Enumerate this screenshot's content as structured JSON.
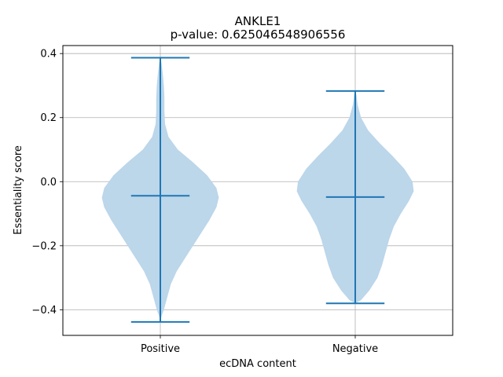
{
  "chart_data": {
    "type": "violin",
    "title": "ANKLE1",
    "subtitle": "p-value: 0.625046548906556",
    "xlabel": "ecDNA content",
    "ylabel": "Essentiality score",
    "categories": [
      "Positive",
      "Negative"
    ],
    "ylim": [
      -0.48,
      0.425
    ],
    "yticks": [
      -0.4,
      -0.2,
      0.0,
      0.2,
      0.4
    ],
    "ytick_labels": [
      "−0.4",
      "−0.2",
      "0.0",
      "0.2",
      "0.4"
    ],
    "grid": true,
    "color": "#1f77b4",
    "body_color": "#bcd6ea",
    "series": [
      {
        "category": "Positive",
        "min": -0.438,
        "median": -0.044,
        "max": 0.387,
        "density": [
          [
            -0.438,
            0.0
          ],
          [
            -0.42,
            0.02
          ],
          [
            -0.4,
            0.06
          ],
          [
            -0.36,
            0.12
          ],
          [
            -0.32,
            0.18
          ],
          [
            -0.28,
            0.28
          ],
          [
            -0.24,
            0.42
          ],
          [
            -0.2,
            0.56
          ],
          [
            -0.16,
            0.7
          ],
          [
            -0.12,
            0.84
          ],
          [
            -0.08,
            0.96
          ],
          [
            -0.05,
            1.0
          ],
          [
            -0.02,
            0.96
          ],
          [
            0.02,
            0.8
          ],
          [
            0.06,
            0.56
          ],
          [
            0.1,
            0.3
          ],
          [
            0.14,
            0.14
          ],
          [
            0.18,
            0.08
          ],
          [
            0.22,
            0.07
          ],
          [
            0.26,
            0.07
          ],
          [
            0.3,
            0.06
          ],
          [
            0.34,
            0.04
          ],
          [
            0.37,
            0.02
          ],
          [
            0.387,
            0.0
          ]
        ]
      },
      {
        "category": "Negative",
        "min": -0.38,
        "median": -0.048,
        "max": 0.283,
        "density": [
          [
            -0.38,
            0.0
          ],
          [
            -0.37,
            0.1
          ],
          [
            -0.34,
            0.24
          ],
          [
            -0.3,
            0.38
          ],
          [
            -0.26,
            0.46
          ],
          [
            -0.22,
            0.52
          ],
          [
            -0.18,
            0.58
          ],
          [
            -0.14,
            0.66
          ],
          [
            -0.1,
            0.78
          ],
          [
            -0.06,
            0.92
          ],
          [
            -0.03,
            1.0
          ],
          [
            0.0,
            0.98
          ],
          [
            0.04,
            0.84
          ],
          [
            0.08,
            0.64
          ],
          [
            0.12,
            0.42
          ],
          [
            0.16,
            0.22
          ],
          [
            0.2,
            0.1
          ],
          [
            0.24,
            0.04
          ],
          [
            0.27,
            0.02
          ],
          [
            0.283,
            0.0
          ]
        ]
      }
    ]
  }
}
